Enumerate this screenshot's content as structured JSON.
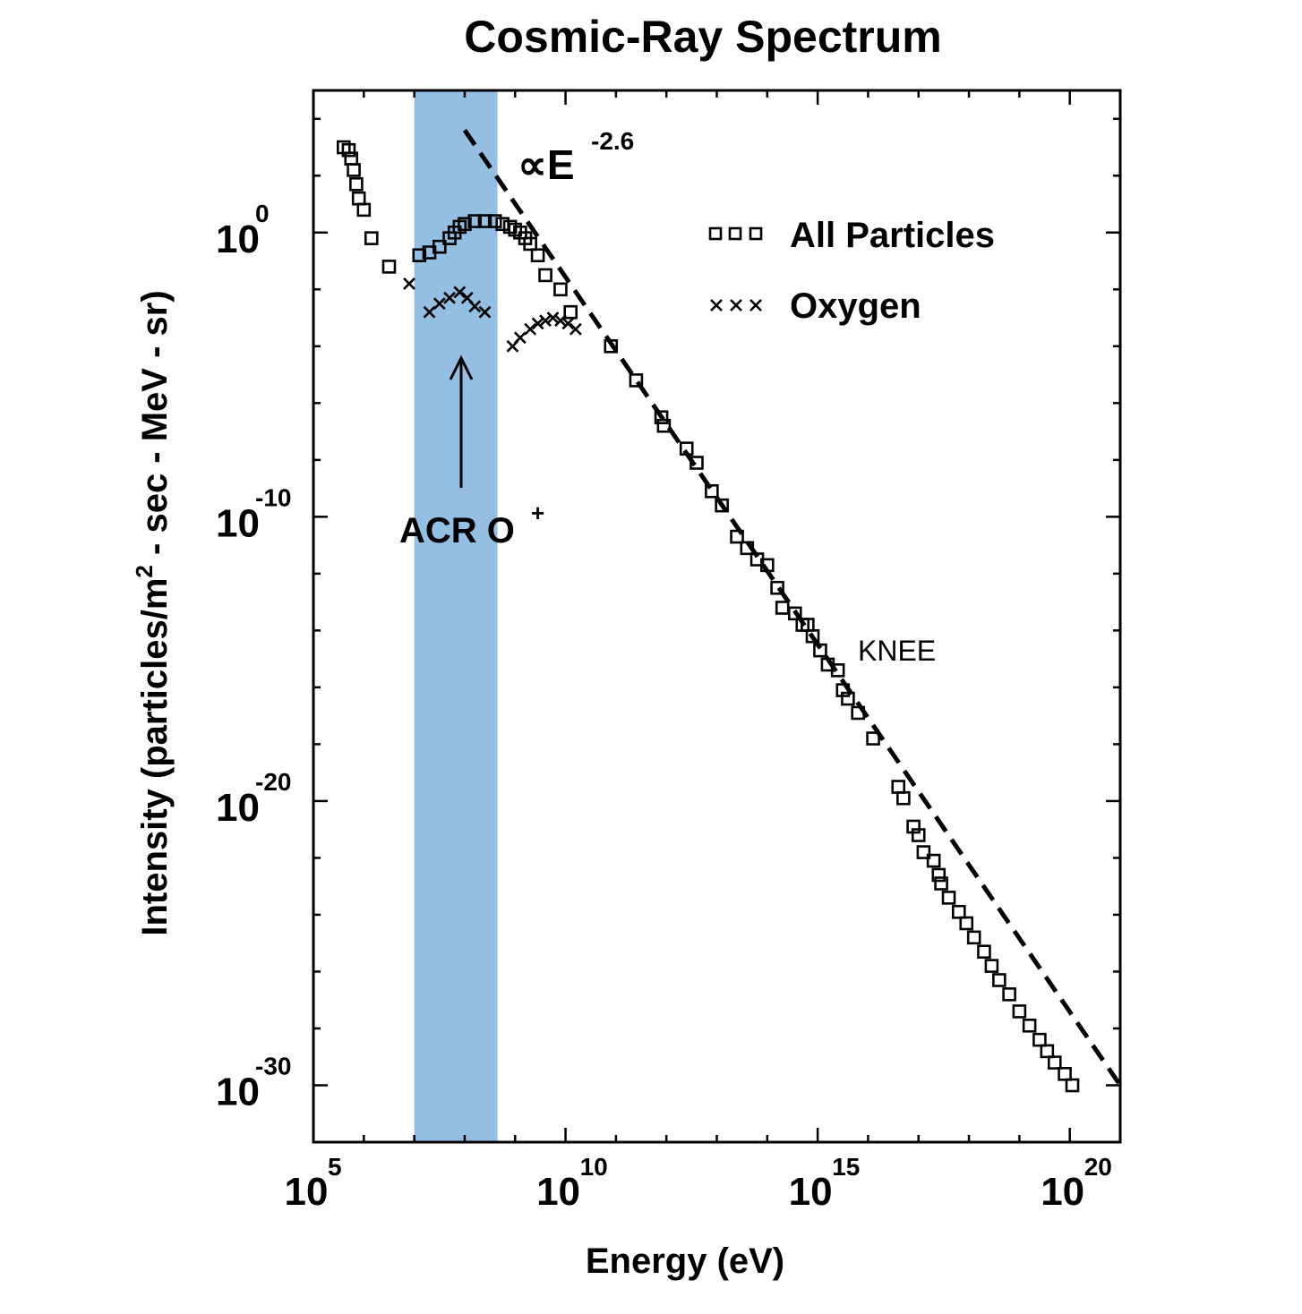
{
  "chart_data": {
    "type": "scatter",
    "title": "Cosmic-Ray Spectrum",
    "xlabel": "Energy (eV)",
    "ylabel_parts": [
      "Intensity (particles/m",
      "2",
      " - sec - MeV - sr)"
    ],
    "x_scale": "log",
    "y_scale": "log",
    "xlim_exp": [
      5,
      21
    ],
    "ylim_exp": [
      -32,
      5
    ],
    "x_ticks": [
      {
        "base": "10",
        "exp": "5",
        "value_exp": 5
      },
      {
        "base": "10",
        "exp": "10",
        "value_exp": 10
      },
      {
        "base": "10",
        "exp": "15",
        "value_exp": 15
      },
      {
        "base": "10",
        "exp": "20",
        "value_exp": 20
      }
    ],
    "y_ticks": [
      {
        "base": "10",
        "exp": "0",
        "value_exp": 0
      },
      {
        "base": "10",
        "exp": "-10",
        "value_exp": -10
      },
      {
        "base": "10",
        "exp": "-20",
        "value_exp": -20
      },
      {
        "base": "10",
        "exp": "-30",
        "value_exp": -30
      }
    ],
    "x_minor_step": 1,
    "y_minor_step": 2,
    "series": [
      {
        "name": "All Particles",
        "marker": "square",
        "points_log10": [
          [
            5.6,
            3.0
          ],
          [
            5.7,
            2.9
          ],
          [
            5.75,
            2.6
          ],
          [
            5.8,
            2.2
          ],
          [
            5.85,
            1.7
          ],
          [
            5.9,
            1.2
          ],
          [
            6.0,
            0.8
          ],
          [
            6.15,
            -0.2
          ],
          [
            6.5,
            -1.2
          ],
          [
            7.1,
            -0.8
          ],
          [
            7.3,
            -0.7
          ],
          [
            7.5,
            -0.5
          ],
          [
            7.7,
            -0.2
          ],
          [
            7.8,
            0.0
          ],
          [
            7.9,
            0.2
          ],
          [
            8.0,
            0.3
          ],
          [
            8.2,
            0.4
          ],
          [
            8.4,
            0.4
          ],
          [
            8.6,
            0.4
          ],
          [
            8.75,
            0.3
          ],
          [
            8.9,
            0.2
          ],
          [
            9.0,
            0.1
          ],
          [
            9.1,
            0.0
          ],
          [
            9.2,
            -0.2
          ],
          [
            9.3,
            -0.4
          ],
          [
            9.45,
            -0.8
          ],
          [
            9.6,
            -1.5
          ],
          [
            9.9,
            -2.0
          ],
          [
            10.1,
            -2.8
          ],
          [
            10.9,
            -4.0
          ],
          [
            11.4,
            -5.2
          ],
          [
            11.9,
            -6.5
          ],
          [
            11.95,
            -6.8
          ],
          [
            12.4,
            -7.6
          ],
          [
            12.6,
            -8.1
          ],
          [
            12.9,
            -9.1
          ],
          [
            13.1,
            -9.6
          ],
          [
            13.4,
            -10.7
          ],
          [
            13.6,
            -11.1
          ],
          [
            13.8,
            -11.5
          ],
          [
            14.0,
            -11.7
          ],
          [
            14.2,
            -12.5
          ],
          [
            14.3,
            -13.2
          ],
          [
            14.55,
            -13.4
          ],
          [
            14.7,
            -13.8
          ],
          [
            14.8,
            -13.8
          ],
          [
            14.9,
            -14.2
          ],
          [
            15.05,
            -14.7
          ],
          [
            15.2,
            -15.2
          ],
          [
            15.4,
            -15.4
          ],
          [
            15.5,
            -16.1
          ],
          [
            15.6,
            -16.4
          ],
          [
            15.8,
            -16.9
          ],
          [
            16.1,
            -17.8
          ],
          [
            16.6,
            -19.5
          ],
          [
            16.7,
            -19.9
          ],
          [
            16.9,
            -20.9
          ],
          [
            17.0,
            -21.2
          ],
          [
            17.1,
            -21.8
          ],
          [
            17.3,
            -22.1
          ],
          [
            17.4,
            -22.6
          ],
          [
            17.45,
            -22.9
          ],
          [
            17.6,
            -23.4
          ],
          [
            17.8,
            -23.9
          ],
          [
            17.95,
            -24.3
          ],
          [
            18.1,
            -24.8
          ],
          [
            18.3,
            -25.3
          ],
          [
            18.45,
            -25.8
          ],
          [
            18.6,
            -26.3
          ],
          [
            18.8,
            -26.8
          ],
          [
            19.0,
            -27.4
          ],
          [
            19.2,
            -27.9
          ],
          [
            19.4,
            -28.4
          ],
          [
            19.55,
            -28.8
          ],
          [
            19.7,
            -29.2
          ],
          [
            19.9,
            -29.6
          ],
          [
            20.05,
            -30.0
          ]
        ]
      },
      {
        "name": "Oxygen",
        "marker": "cross",
        "points_log10": [
          [
            6.9,
            -1.8
          ],
          [
            7.3,
            -2.8
          ],
          [
            7.5,
            -2.5
          ],
          [
            7.7,
            -2.3
          ],
          [
            7.9,
            -2.1
          ],
          [
            8.05,
            -2.3
          ],
          [
            8.2,
            -2.6
          ],
          [
            8.4,
            -2.8
          ],
          [
            8.95,
            -4.0
          ],
          [
            9.1,
            -3.7
          ],
          [
            9.3,
            -3.4
          ],
          [
            9.45,
            -3.2
          ],
          [
            9.6,
            -3.1
          ],
          [
            9.75,
            -3.0
          ],
          [
            9.9,
            -3.1
          ],
          [
            10.05,
            -3.2
          ],
          [
            10.2,
            -3.4
          ]
        ]
      }
    ],
    "power_law_line": {
      "label_base": "∝E",
      "label_exp": "-2.6",
      "points_log10": [
        [
          8.0,
          3.6
        ],
        [
          21.0,
          -30.0
        ]
      ]
    },
    "highlight_band": {
      "x_from_log10": 7.0,
      "x_to_log10": 8.65,
      "color": "#94bee2"
    },
    "annotations": {
      "acr_base": "ACR O",
      "acr_sup": "+",
      "knee": "KNEE"
    },
    "legend": {
      "position": "upper-right",
      "entries": [
        {
          "label": "All Particles",
          "marker": "square"
        },
        {
          "label": "Oxygen",
          "marker": "cross"
        }
      ]
    },
    "colors": {
      "band": "#94bee2",
      "ink": "#000000",
      "background": "#ffffff"
    }
  }
}
